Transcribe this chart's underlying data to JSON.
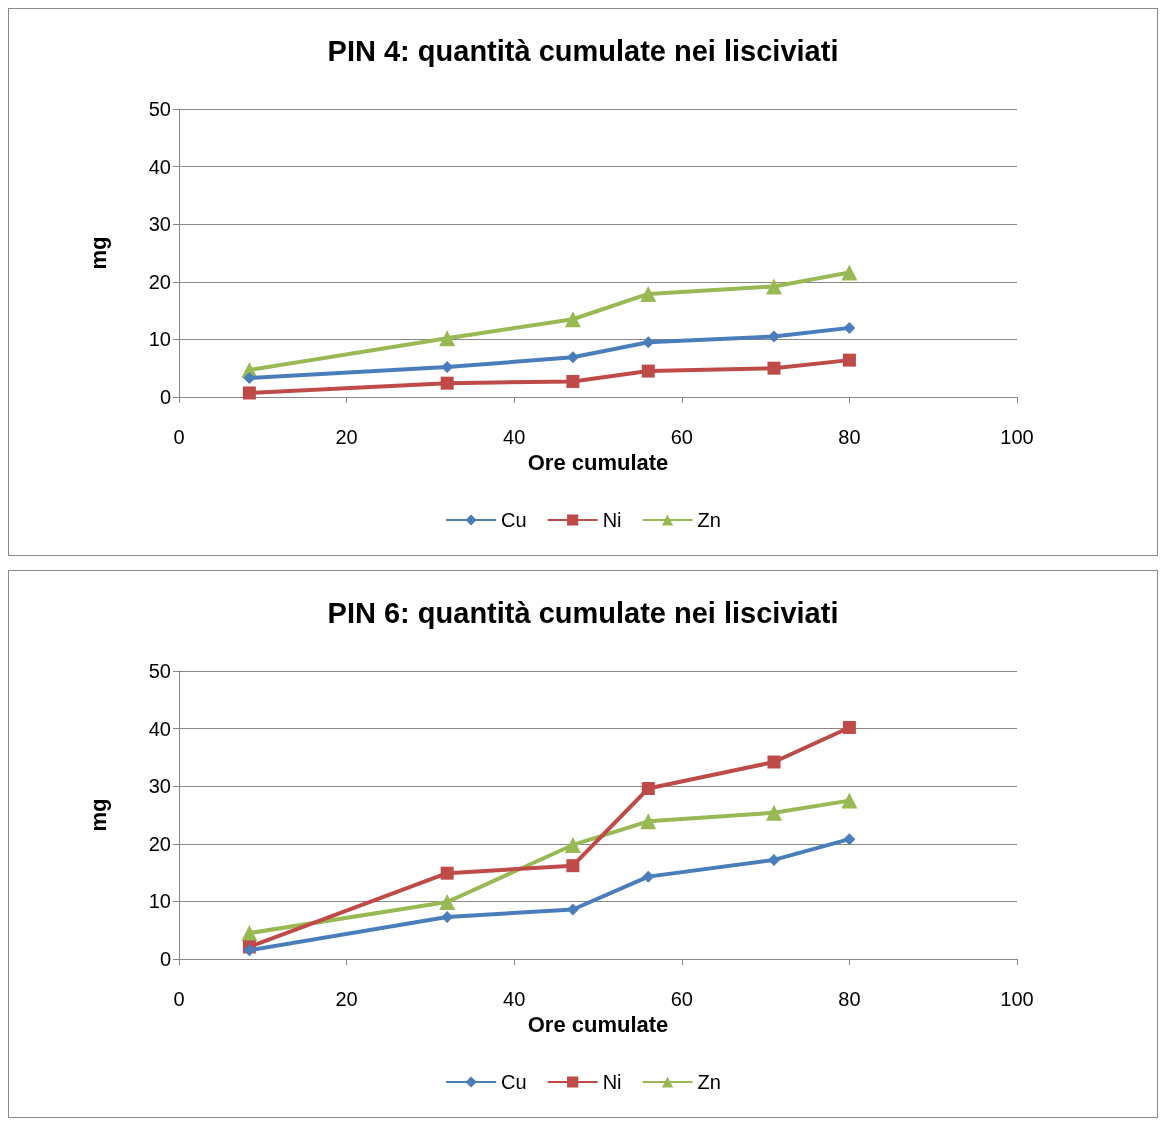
{
  "chart_data": [
    {
      "type": "line",
      "title": "PIN 4: quantità cumulate nei lisciviati",
      "xlabel": "Ore cumulate",
      "ylabel": "mg",
      "xlim": [
        0,
        100
      ],
      "xticks": [
        0,
        20,
        40,
        60,
        80,
        100
      ],
      "ylim": [
        0,
        50
      ],
      "yticks": [
        0,
        10,
        20,
        30,
        40,
        50
      ],
      "grid": "y",
      "legend": "bottom",
      "x": [
        8.4,
        32,
        47,
        56,
        71,
        80
      ],
      "series": [
        {
          "name": "Cu",
          "color": "#4a7ebb",
          "marker": "diamond",
          "values": [
            3.3,
            5.2,
            6.9,
            9.5,
            10.5,
            12.0
          ]
        },
        {
          "name": "Ni",
          "color": "#be4b48",
          "marker": "square",
          "values": [
            0.7,
            2.4,
            2.7,
            4.5,
            5.0,
            6.4
          ]
        },
        {
          "name": "Zn",
          "color": "#98b954",
          "marker": "triangle",
          "values": [
            4.7,
            10.2,
            13.5,
            17.9,
            19.2,
            21.6
          ]
        }
      ]
    },
    {
      "type": "line",
      "title": "PIN 6: quantità cumulate nei lisciviati",
      "xlabel": "Ore cumulate",
      "ylabel": "mg",
      "xlim": [
        0,
        100
      ],
      "xticks": [
        0,
        20,
        40,
        60,
        80,
        100
      ],
      "ylim": [
        0,
        50
      ],
      "yticks": [
        0,
        10,
        20,
        30,
        40,
        50
      ],
      "grid": "y",
      "legend": "bottom",
      "x": [
        8.4,
        32,
        47,
        56,
        71,
        80
      ],
      "series": [
        {
          "name": "Cu",
          "color": "#4a7ebb",
          "marker": "diamond",
          "values": [
            1.5,
            7.3,
            8.6,
            14.3,
            17.2,
            20.8
          ]
        },
        {
          "name": "Ni",
          "color": "#be4b48",
          "marker": "square",
          "values": [
            2.1,
            14.9,
            16.2,
            29.6,
            34.2,
            40.2
          ]
        },
        {
          "name": "Zn",
          "color": "#98b954",
          "marker": "triangle",
          "values": [
            4.5,
            9.9,
            19.8,
            23.9,
            25.4,
            27.5
          ]
        }
      ]
    }
  ]
}
